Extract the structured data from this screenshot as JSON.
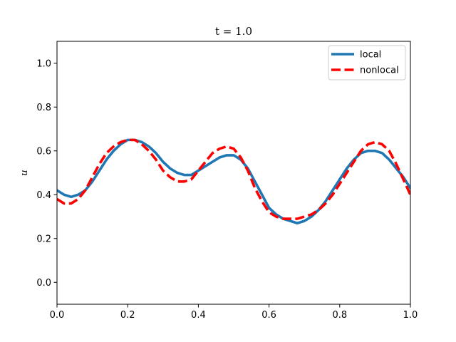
{
  "chart_data": {
    "type": "line",
    "title": "t = 1.0",
    "xlabel": "",
    "ylabel": "u",
    "xlim": [
      0.0,
      1.0
    ],
    "ylim": [
      -0.1,
      1.1
    ],
    "xticks": [
      "0.0",
      "0.2",
      "0.4",
      "0.6",
      "0.8",
      "1.0"
    ],
    "yticks": [
      "0.0",
      "0.2",
      "0.4",
      "0.6",
      "0.8",
      "1.0"
    ],
    "grid": false,
    "legend_position": "top-right",
    "series": [
      {
        "name": "local",
        "color": "#1f77b4",
        "style": "solid",
        "x": [
          0.0,
          0.02,
          0.04,
          0.06,
          0.08,
          0.1,
          0.12,
          0.14,
          0.16,
          0.18,
          0.2,
          0.22,
          0.24,
          0.26,
          0.28,
          0.3,
          0.32,
          0.34,
          0.36,
          0.38,
          0.4,
          0.42,
          0.44,
          0.46,
          0.48,
          0.5,
          0.52,
          0.54,
          0.56,
          0.58,
          0.6,
          0.62,
          0.64,
          0.66,
          0.68,
          0.7,
          0.72,
          0.74,
          0.76,
          0.78,
          0.8,
          0.82,
          0.84,
          0.86,
          0.88,
          0.9,
          0.92,
          0.94,
          0.96,
          0.98,
          1.0
        ],
        "y": [
          0.42,
          0.4,
          0.39,
          0.4,
          0.42,
          0.46,
          0.51,
          0.56,
          0.6,
          0.63,
          0.65,
          0.65,
          0.64,
          0.62,
          0.59,
          0.55,
          0.52,
          0.5,
          0.49,
          0.49,
          0.51,
          0.53,
          0.55,
          0.57,
          0.58,
          0.58,
          0.56,
          0.52,
          0.46,
          0.4,
          0.34,
          0.31,
          0.29,
          0.28,
          0.27,
          0.28,
          0.3,
          0.33,
          0.37,
          0.42,
          0.47,
          0.52,
          0.56,
          0.59,
          0.6,
          0.6,
          0.59,
          0.56,
          0.52,
          0.48,
          0.43
        ]
      },
      {
        "name": "nonlocal",
        "color": "#ff0000",
        "style": "dashed",
        "x": [
          0.0,
          0.02,
          0.04,
          0.06,
          0.08,
          0.1,
          0.12,
          0.14,
          0.16,
          0.18,
          0.2,
          0.22,
          0.24,
          0.26,
          0.28,
          0.3,
          0.32,
          0.34,
          0.36,
          0.38,
          0.4,
          0.42,
          0.44,
          0.46,
          0.48,
          0.5,
          0.52,
          0.54,
          0.56,
          0.58,
          0.6,
          0.62,
          0.64,
          0.66,
          0.68,
          0.7,
          0.72,
          0.74,
          0.76,
          0.78,
          0.8,
          0.82,
          0.84,
          0.86,
          0.88,
          0.9,
          0.92,
          0.94,
          0.96,
          0.98,
          1.0
        ],
        "y": [
          0.38,
          0.36,
          0.36,
          0.38,
          0.42,
          0.48,
          0.54,
          0.59,
          0.62,
          0.64,
          0.65,
          0.65,
          0.63,
          0.6,
          0.56,
          0.51,
          0.48,
          0.46,
          0.46,
          0.47,
          0.51,
          0.55,
          0.59,
          0.61,
          0.62,
          0.61,
          0.57,
          0.51,
          0.43,
          0.37,
          0.32,
          0.3,
          0.29,
          0.29,
          0.29,
          0.3,
          0.31,
          0.33,
          0.36,
          0.4,
          0.45,
          0.5,
          0.55,
          0.6,
          0.63,
          0.64,
          0.63,
          0.6,
          0.54,
          0.47,
          0.4
        ]
      }
    ]
  }
}
